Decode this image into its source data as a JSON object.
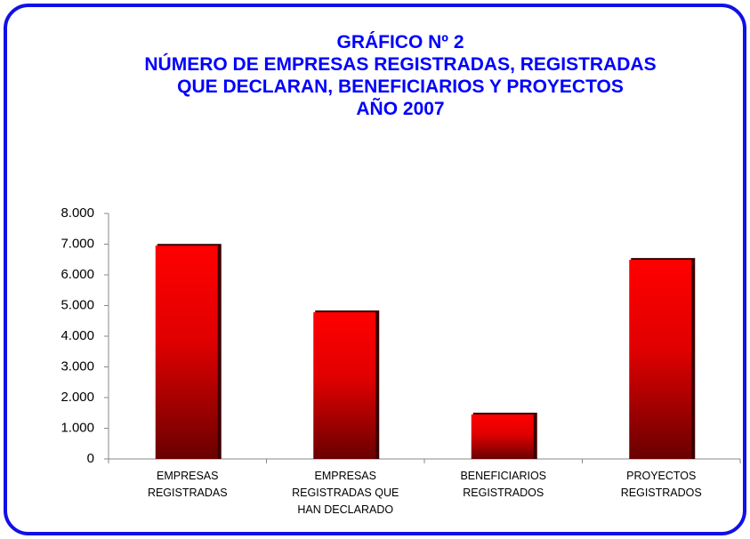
{
  "chart_data": {
    "type": "bar",
    "title": [
      "GRÁFICO Nº 2",
      "NÚMERO DE EMPRESAS REGISTRADAS, REGISTRADAS",
      "QUE DECLARAN, BENEFICIARIOS Y PROYECTOS",
      "AÑO 2007"
    ],
    "categories": [
      [
        "EMPRESAS",
        "REGISTRADAS"
      ],
      [
        "EMPRESAS",
        "REGISTRADAS QUE",
        "HAN DECLARADO"
      ],
      [
        "BENEFICIARIOS",
        "REGISTRADOS"
      ],
      [
        "PROYECTOS",
        "REGISTRADOS"
      ]
    ],
    "values": [
      6950,
      4780,
      1450,
      6490
    ],
    "color": "#ff0000",
    "ylim": [
      0,
      8000
    ],
    "yticks": [
      0,
      {
        "value": 1000,
        "label": "1.000"
      },
      {
        "value": 2000,
        "label": "2.000"
      },
      {
        "value": 3000,
        "label": "3.000"
      },
      {
        "value": 4000,
        "label": "4.000"
      },
      {
        "value": 5000,
        "label": "5.000"
      },
      {
        "value": 6000,
        "label": "6.000"
      },
      {
        "value": 7000,
        "label": "7.000"
      },
      {
        "value": 8000,
        "label": "8.000"
      }
    ]
  }
}
